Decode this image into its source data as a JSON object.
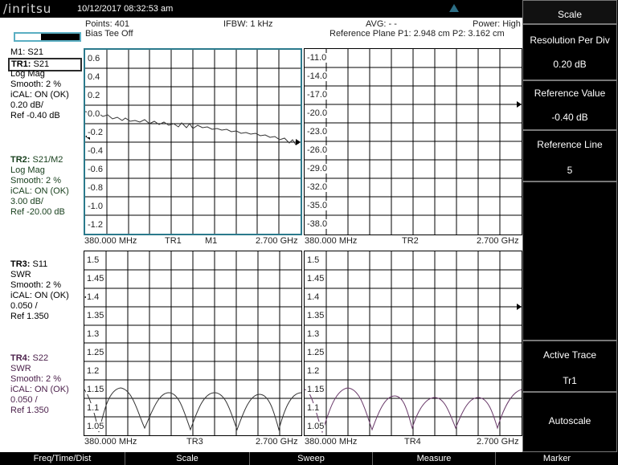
{
  "status": {
    "brand": "/inritsu",
    "datetime": "10/12/2017 08:32:53 am",
    "points": "Points: 401",
    "ifbw": "IFBW: 1 kHz",
    "avg": "AVG: - -",
    "power": "Power: High",
    "bias_tee": "Bias Tee Off",
    "ref_plane": "Reference Plane P1: 2.948 cm P2: 3.162 cm"
  },
  "traces": {
    "m1": "M1: S21",
    "tr1": {
      "name": "TR1:",
      "param": "S21",
      "format": "Log Mag",
      "smooth": "Smooth: 2 %",
      "ical": "iCAL: ON (OK)",
      "scale": "0.20 dB/",
      "ref": "Ref -0.40 dB"
    },
    "tr2": {
      "name": "TR2:",
      "param": "S21/M2",
      "format": "Log Mag",
      "smooth": "Smooth: 2 %",
      "ical": "iCAL: ON (OK)",
      "scale": "3.00 dB/",
      "ref": "Ref -20.00 dB"
    },
    "tr3": {
      "name": "TR3:",
      "param": "S11",
      "format": "SWR",
      "smooth": "Smooth: 2 %",
      "ical": "iCAL: ON (OK)",
      "scale": "0.050 /",
      "ref": "Ref 1.350"
    },
    "tr4": {
      "name": "TR4:",
      "param": "S22",
      "format": "SWR",
      "smooth": "Smooth: 2 %",
      "ical": "iCAL: ON (OK)",
      "scale": "0.050 /",
      "ref": "Ref 1.350"
    }
  },
  "plots": {
    "p1": {
      "yticks": [
        "0.6",
        "0.4",
        "0.2",
        "0.0",
        "-0.2",
        "-0.4",
        "-0.6",
        "-0.8",
        "-1.0",
        "-1.2"
      ],
      "xstart": "380.000 MHz",
      "label1": "TR1",
      "label2": "M1",
      "xstop": "2.700 GHz"
    },
    "p2": {
      "yticks": [
        "-11.0",
        "-14.0",
        "-17.0",
        "-20.0",
        "-23.0",
        "-26.0",
        "-29.0",
        "-32.0",
        "-35.0",
        "-38.0"
      ],
      "xstart": "380.000 MHz",
      "label1": "TR2",
      "xstop": "2.700 GHz"
    },
    "p3": {
      "yticks": [
        "1.5",
        "1.45",
        "1.4",
        "1.35",
        "1.3",
        "1.25",
        "1.2",
        "1.15",
        "1.1",
        "1.05"
      ],
      "xstart": "380.000 MHz",
      "label1": "TR3",
      "xstop": "2.700 GHz"
    },
    "p4": {
      "yticks": [
        "1.5",
        "1.45",
        "1.4",
        "1.35",
        "1.3",
        "1.25",
        "1.2",
        "1.15",
        "1.1",
        "1.05"
      ],
      "xstart": "380.000 MHz",
      "label1": "TR4",
      "xstop": "2.700 GHz"
    }
  },
  "softkeys": {
    "title": "Scale",
    "resolution_label": "Resolution Per Div",
    "resolution_value": "0.20 dB",
    "reference_value_label": "Reference Value",
    "reference_value": "-0.40 dB",
    "reference_line_label": "Reference Line",
    "reference_line_value": "5",
    "active_trace_label": "Active Trace",
    "active_trace_value": "Tr1",
    "autoscale_label": "Autoscale"
  },
  "bottom_menu": [
    "Freq/Time/Dist",
    "Scale",
    "Sweep",
    "Measure",
    "Marker"
  ],
  "colors": {
    "tr1_trace": "#333333",
    "tr4_trace": "#6a3a6a",
    "active_border": "#2b7a8c",
    "grid": "#000000"
  }
}
